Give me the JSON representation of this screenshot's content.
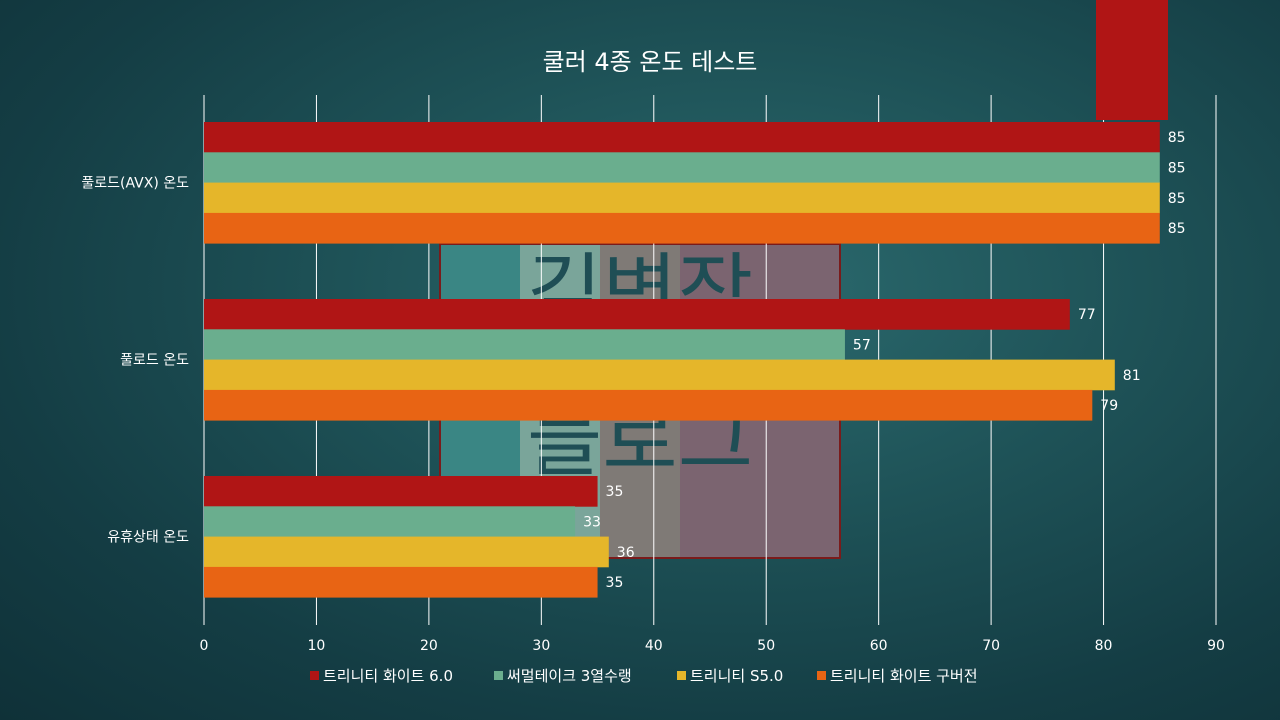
{
  "chart_data": {
    "type": "bar",
    "orientation": "horizontal",
    "title": "쿨러 4종 온도 테스트",
    "categories": [
      "풀로드(AVX) 온도",
      "풀로드 온도",
      "유휴상태 온도"
    ],
    "series": [
      {
        "name": "트리니티 화이트 6.0",
        "color": "#b01515",
        "values": [
          85,
          77,
          35
        ]
      },
      {
        "name": "써멀테이크 3열수랭",
        "color": "#6aae8e",
        "values": [
          85,
          57,
          33
        ]
      },
      {
        "name": "트리니티 S5.0",
        "color": "#e5b62a",
        "values": [
          85,
          81,
          36
        ]
      },
      {
        "name": "트리니티 화이트 구버전",
        "color": "#e86414",
        "values": [
          85,
          79,
          35
        ]
      }
    ],
    "xlim": [
      0,
      90
    ],
    "xticks": [
      0,
      10,
      20,
      30,
      40,
      50,
      60,
      70,
      80,
      90
    ],
    "grid": true,
    "legend_position": "bottom",
    "data_labels": true
  },
  "watermark": {
    "lines": [
      "김변장",
      "블로그"
    ],
    "colors": [
      "#3a8684",
      "#7aa59a",
      "#7f7a76",
      "#7b6470"
    ],
    "border": "#7a1b1b"
  },
  "decoration": {
    "corner_color": "#b01515"
  }
}
